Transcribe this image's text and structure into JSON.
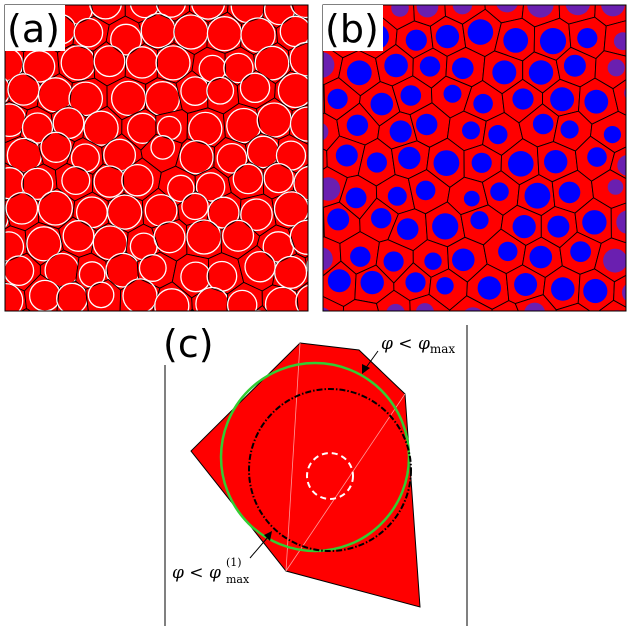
{
  "panels": {
    "a": {
      "label": "(a)",
      "cell_color": "#ff0000",
      "circle_stroke": "#ffffff",
      "edge_color": "#000000"
    },
    "b": {
      "label": "(b)",
      "cell_color": "#ff0000",
      "particle_color": "#0000ff",
      "faded_particle_color": "#6a1fb0",
      "edge_color": "#000000"
    },
    "c": {
      "label": "(c)",
      "polygon_color": "#ff0000",
      "inscribed_circle_color": "#33cc33",
      "dashdot_circle_color": "#000000",
      "inner_circle_color": "#ffffff",
      "annotation_top": {
        "symbol": "φ",
        "relation": " < ",
        "rhs": "φ",
        "rhs_sub": "max"
      },
      "annotation_bottom": {
        "symbol": "φ",
        "relation": " < ",
        "rhs": "φ",
        "rhs_sub": "max",
        "rhs_sup": "(1)"
      }
    }
  }
}
